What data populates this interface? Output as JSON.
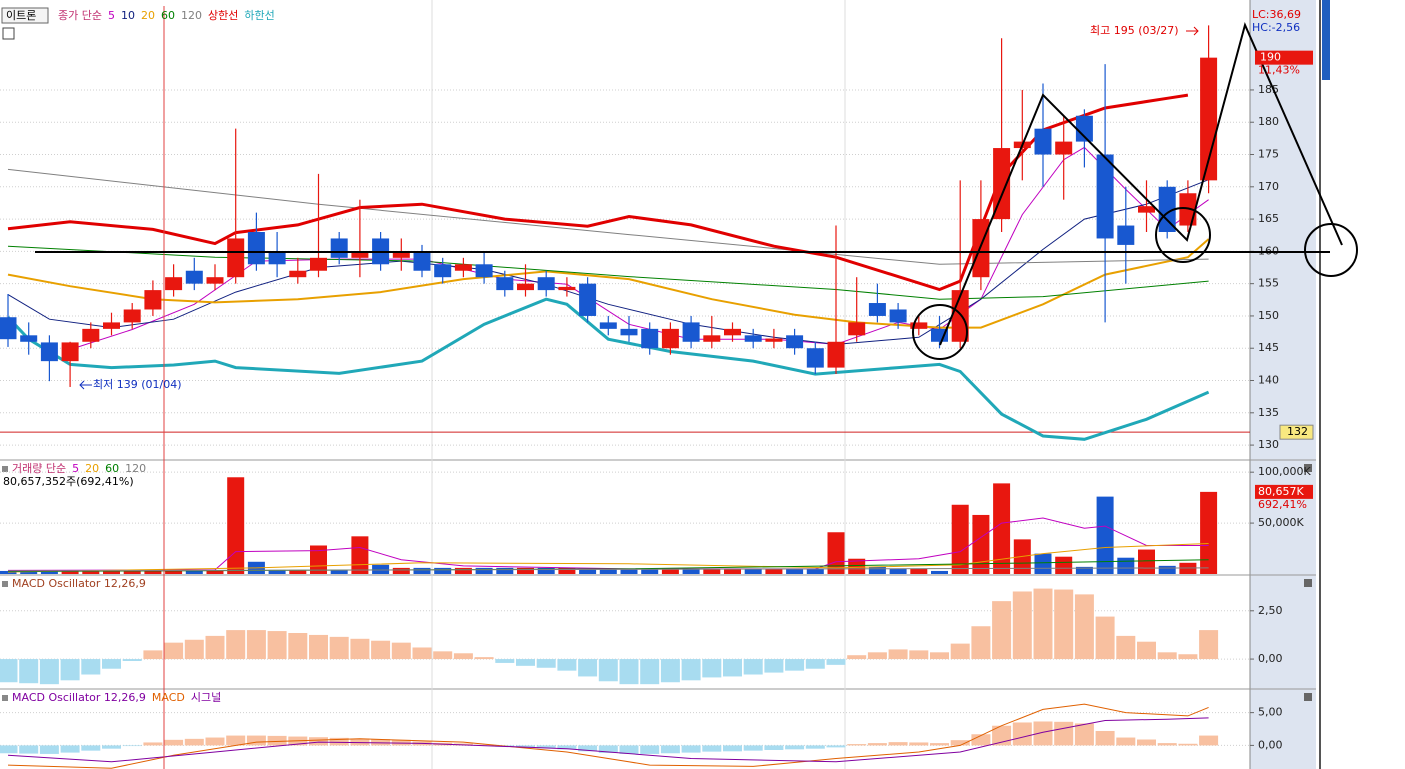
{
  "chart_data": [
    {
      "type": "candlestick",
      "name": "이트론",
      "legend_prefix": "종가 단순",
      "colors": {
        "up": "#e8170f",
        "down": "#1858d0"
      },
      "open": [
        149.8,
        147,
        145.9,
        143,
        146,
        148,
        149,
        151,
        154,
        157,
        155,
        156,
        163,
        160,
        156,
        157,
        162,
        159,
        162,
        159,
        160,
        158,
        157,
        158,
        156,
        154,
        156,
        154,
        155,
        149,
        148,
        148,
        145,
        149,
        146,
        147,
        147,
        146,
        147,
        145,
        142,
        147,
        152,
        151,
        148,
        148,
        146,
        156,
        165,
        176,
        179,
        175,
        181,
        175,
        164,
        166,
        170,
        164,
        171
      ],
      "high": [
        153.4,
        149,
        147,
        146,
        149,
        150.5,
        152,
        155.5,
        158,
        159,
        158,
        179,
        166,
        163,
        159,
        172,
        163,
        168,
        163,
        162,
        161,
        159,
        159,
        160,
        157,
        158,
        157,
        156,
        156,
        150,
        150,
        149,
        149,
        150,
        150,
        149,
        148,
        148,
        148,
        146,
        164,
        156,
        155,
        152,
        150,
        150,
        171,
        171,
        193,
        185,
        186,
        181,
        182,
        189,
        170,
        171,
        171,
        171,
        195
      ],
      "low": [
        145.2,
        144,
        139.9,
        139,
        145,
        147,
        148,
        150,
        153,
        154,
        154,
        155,
        157,
        156,
        155,
        156,
        158,
        156,
        157,
        157,
        156,
        155,
        156,
        155,
        153,
        153,
        153,
        153,
        149,
        147,
        146,
        144,
        144,
        145,
        145,
        146,
        145,
        145,
        144,
        141,
        141,
        146,
        149,
        148,
        147,
        145,
        145,
        154,
        163,
        171,
        170,
        168,
        173,
        149,
        155,
        163,
        162,
        163,
        169
      ],
      "close": [
        146.4,
        146,
        143,
        145.9,
        148,
        149,
        151,
        154,
        156,
        155,
        156,
        162,
        158,
        158,
        157,
        159,
        159,
        160,
        158,
        160,
        157,
        156,
        158,
        156,
        154,
        155,
        154,
        154.5,
        150,
        148,
        147,
        145,
        148,
        146,
        147,
        148,
        146,
        146.5,
        145,
        142,
        146,
        149,
        150,
        149,
        149,
        146,
        154,
        165,
        176,
        177,
        175,
        177,
        177,
        162,
        161,
        167,
        163,
        169,
        190
      ],
      "series": [
        {
          "name": "5",
          "color": "#c000c0",
          "width": 1,
          "x": [
            3,
            6,
            9,
            12,
            16,
            20,
            24,
            27,
            30,
            33,
            37,
            40,
            43,
            45,
            47,
            49,
            51,
            52,
            54,
            56,
            58
          ],
          "values": [
            144.8,
            147.9,
            151.8,
            158.5,
            158.8,
            158.8,
            155.7,
            154.9,
            148.7,
            146.4,
            146.4,
            145.6,
            149.0,
            147.9,
            152.6,
            165.7,
            174.2,
            176.1,
            169.6,
            163.4,
            168.0
          ]
        },
        {
          "name": "10",
          "color": "#102080",
          "width": 1,
          "x": [
            0,
            2,
            5,
            8,
            11,
            15,
            19,
            23,
            26,
            29,
            33,
            37,
            40,
            44,
            47,
            50,
            52,
            55,
            58
          ],
          "values": [
            153.3,
            149.5,
            148.2,
            149.5,
            153.7,
            157.5,
            158.5,
            157.2,
            154.9,
            151.8,
            148.7,
            146.7,
            145.6,
            146.7,
            152.6,
            160.3,
            165.0,
            167.3,
            171.1
          ]
        },
        {
          "name": "20",
          "color": "#e8a000",
          "width": 2,
          "x": [
            0,
            3,
            7,
            10,
            14,
            18,
            22,
            26,
            30,
            34,
            38,
            41,
            45,
            47,
            50,
            53,
            57,
            58
          ],
          "values": [
            156.4,
            154.6,
            152.6,
            152.1,
            152.6,
            153.7,
            155.7,
            156.9,
            155.7,
            152.6,
            150.2,
            149.0,
            148.2,
            148.2,
            151.8,
            156.4,
            159.1,
            161.9
          ]
        },
        {
          "name": "60",
          "color": "#008000",
          "width": 1,
          "x": [
            0,
            10,
            20,
            30,
            40,
            45,
            50,
            58
          ],
          "values": [
            160.8,
            159.1,
            158.5,
            156.1,
            154.1,
            152.6,
            153.0,
            155.4
          ]
        },
        {
          "name": "120",
          "color": "#808080",
          "width": 1,
          "x": [
            0,
            15,
            30,
            45,
            58
          ],
          "values": [
            172.7,
            167.3,
            162.6,
            158.0,
            158.8
          ]
        },
        {
          "name": "상한선",
          "color": "#e00000",
          "width": 3,
          "x": [
            0,
            3,
            7,
            10,
            11,
            14,
            17,
            20,
            24,
            28,
            30,
            33,
            37,
            40,
            45,
            46,
            48,
            50,
            53,
            56,
            57
          ],
          "values": [
            163.5,
            164.6,
            163.4,
            161.2,
            162.9,
            164.1,
            166.8,
            167.3,
            165,
            163.9,
            165.4,
            164.1,
            160.8,
            159.1,
            154.1,
            155.4,
            171.9,
            178.8,
            182.2,
            183.7,
            184.2
          ]
        },
        {
          "name": "하한선",
          "color": "#20a8b8",
          "width": 3,
          "x": [
            0,
            1,
            3,
            5,
            8,
            10,
            11,
            16,
            20,
            23,
            26,
            27,
            29,
            32,
            36,
            39,
            43,
            45,
            46,
            48,
            50,
            52,
            55,
            58
          ],
          "values": [
            149.8,
            146.4,
            142.5,
            142.0,
            142.4,
            143.0,
            142.0,
            141.1,
            143.0,
            148.7,
            152.6,
            151.8,
            146.4,
            144.5,
            143.0,
            141.0,
            142.0,
            142.5,
            141.4,
            134.8,
            131.4,
            130.9,
            134.0,
            138.2
          ]
        }
      ],
      "ylim": [
        128,
        198
      ],
      "yticks": [
        130,
        135,
        140,
        145,
        150,
        155,
        160,
        165,
        170,
        175,
        180,
        185
      ],
      "grid": true,
      "high_label": "최고 195 (03/27)",
      "low_label": "최저 139 (01/04)",
      "lc_label": "LC:36,69",
      "hc_label": "HC:-2,56",
      "last_price": 190,
      "change_label": "11,43%",
      "lower_limit": 132
    },
    {
      "type": "volume",
      "legend_prefix": "거래량 단순",
      "summary": "80,657,352주(692,41%)",
      "values": [
        3000,
        3000,
        3000,
        3000,
        3000,
        3000,
        3000,
        3000,
        3000,
        3000,
        3000,
        95000,
        12000,
        4000,
        4000,
        28000,
        4000,
        37000,
        9000,
        6000,
        6000,
        6000,
        6000,
        6000,
        6000,
        6000,
        6000,
        6000,
        5000,
        5000,
        5000,
        5000,
        5000,
        5000,
        5000,
        5000,
        5000,
        5000,
        5000,
        5000,
        41000,
        15000,
        7000,
        5000,
        5000,
        3000,
        68000,
        58000,
        89000,
        34000,
        20000,
        17000,
        7000,
        76000,
        16000,
        24000,
        8000,
        11000,
        80657
      ],
      "last_label": "80,657K",
      "ratio_label": "692,41%",
      "series": [
        {
          "name": "5",
          "color": "#c000c0",
          "width": 1,
          "x": [
            0,
            10,
            11,
            15,
            17,
            19,
            22,
            30,
            39,
            40,
            44,
            46,
            48,
            50,
            52,
            53,
            55,
            58
          ],
          "values": [
            3500,
            4000,
            22000,
            23000,
            26000,
            14000,
            8000,
            5000,
            5000,
            12000,
            15000,
            22000,
            50000,
            55000,
            45000,
            47000,
            28000,
            28000
          ]
        },
        {
          "name": "20",
          "color": "#e8a000",
          "width": 1,
          "x": [
            0,
            12,
            20,
            30,
            40,
            46,
            50,
            53,
            58
          ],
          "values": [
            2000,
            6000,
            11000,
            10000,
            6000,
            9000,
            20000,
            26000,
            30000
          ]
        },
        {
          "name": "60",
          "color": "#008000",
          "width": 1,
          "x": [
            0,
            30,
            50,
            58
          ],
          "values": [
            2500,
            5000,
            11000,
            14000
          ]
        },
        {
          "name": "120",
          "color": "#808080",
          "width": 1,
          "x": [
            0,
            58
          ],
          "values": [
            3000,
            6000
          ]
        }
      ],
      "ylim": [
        0,
        110000
      ],
      "yticks": [
        {
          "value": 50000,
          "label": "50,000K"
        },
        {
          "value": 100000,
          "label": "100,000K"
        }
      ]
    },
    {
      "type": "oscillator",
      "title": "MACD Oscillator 12,26,9",
      "colors": {
        "up": "#f8c0a0",
        "down": "#a8dcf0"
      },
      "values": [
        -1.2,
        -1.25,
        -1.3,
        -1.1,
        -0.8,
        -0.5,
        -0.1,
        0.45,
        0.85,
        1.0,
        1.2,
        1.5,
        1.5,
        1.45,
        1.35,
        1.25,
        1.15,
        1.05,
        0.95,
        0.85,
        0.6,
        0.4,
        0.3,
        0.1,
        -0.2,
        -0.35,
        -0.45,
        -0.6,
        -0.9,
        -1.15,
        -1.3,
        -1.3,
        -1.2,
        -1.1,
        -0.95,
        -0.9,
        -0.8,
        -0.7,
        -0.6,
        -0.5,
        -0.3,
        0.2,
        0.35,
        0.5,
        0.45,
        0.35,
        0.8,
        1.7,
        3.0,
        3.5,
        3.65,
        3.6,
        3.35,
        2.2,
        1.2,
        0.9,
        0.35,
        0.25,
        1.5
      ],
      "ylim": [
        -1.55,
        4.25
      ],
      "yticks": [
        {
          "value": 0,
          "label": "0,00"
        },
        {
          "value": 2.5,
          "label": "2,50"
        }
      ]
    },
    {
      "type": "macd",
      "title": "MACD Oscillator 12,26,9",
      "colors": {
        "up": "#f8c0a0",
        "down": "#a8dcf0"
      },
      "values": [
        -1.2,
        -1.25,
        -1.3,
        -1.1,
        -0.8,
        -0.5,
        -0.1,
        0.45,
        0.85,
        1.0,
        1.2,
        1.5,
        1.5,
        1.45,
        1.35,
        1.25,
        1.15,
        1.05,
        0.95,
        0.85,
        0.6,
        0.4,
        0.3,
        0.1,
        -0.2,
        -0.35,
        -0.45,
        -0.6,
        -0.9,
        -1.15,
        -1.3,
        -1.3,
        -1.2,
        -1.1,
        -0.95,
        -0.9,
        -0.8,
        -0.7,
        -0.6,
        -0.5,
        -0.3,
        0.2,
        0.35,
        0.5,
        0.45,
        0.35,
        0.8,
        1.7,
        3.0,
        3.5,
        3.65,
        3.6,
        3.35,
        2.2,
        1.2,
        0.9,
        0.35,
        0.25,
        1.5
      ],
      "series": [
        {
          "name": "MACD",
          "color": "#e06000",
          "width": 1,
          "x": [
            0,
            5,
            8,
            12,
            17,
            22,
            27,
            31,
            36,
            40,
            44,
            46,
            48,
            50,
            52,
            54,
            57,
            58
          ],
          "values": [
            -3.0,
            -3.5,
            -1.5,
            0.5,
            1,
            0.5,
            -1,
            -3,
            -3.2,
            -2,
            -1,
            0,
            3,
            5.5,
            6.3,
            5,
            4.5,
            5.8
          ]
        },
        {
          "name": "시그널",
          "color": "#8000a0",
          "width": 1,
          "x": [
            0,
            5,
            10,
            15,
            20,
            27,
            33,
            40,
            46,
            50,
            53,
            56,
            58
          ],
          "values": [
            -1.5,
            -2.5,
            -1,
            0.5,
            0.3,
            -0.5,
            -2,
            -2.5,
            -1,
            2,
            3.8,
            4,
            4.2
          ]
        }
      ],
      "ylim": [
        -3.6,
        8.3
      ],
      "yticks": [
        {
          "value": 0,
          "label": "0,00"
        },
        {
          "value": 5,
          "label": "5,00"
        }
      ]
    }
  ]
}
